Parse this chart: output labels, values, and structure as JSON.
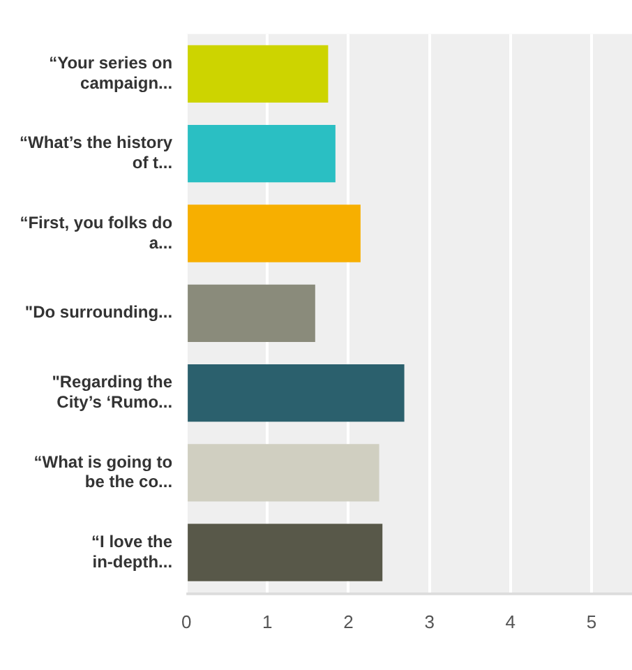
{
  "chart_data": {
    "type": "bar",
    "orientation": "horizontal",
    "categories": [
      "“Your series on campaign...",
      "“What’s the history of t...",
      "“First, you folks do a...",
      "\"Do surrounding...",
      "\"Regarding the City’s ‘Rumo...",
      "“What is going to be the co...",
      "“I love the in-depth..."
    ],
    "values": [
      1.75,
      1.84,
      2.15,
      1.59,
      2.69,
      2.38,
      2.42
    ],
    "colors": [
      "#cdd400",
      "#2abfc3",
      "#f7af00",
      "#8a8b7b",
      "#2b606d",
      "#d0cfc1",
      "#585849"
    ],
    "xlim": [
      0,
      5.5
    ],
    "xticks": [
      0,
      1,
      2,
      3,
      4,
      5
    ],
    "grid": "x",
    "legend": false
  }
}
